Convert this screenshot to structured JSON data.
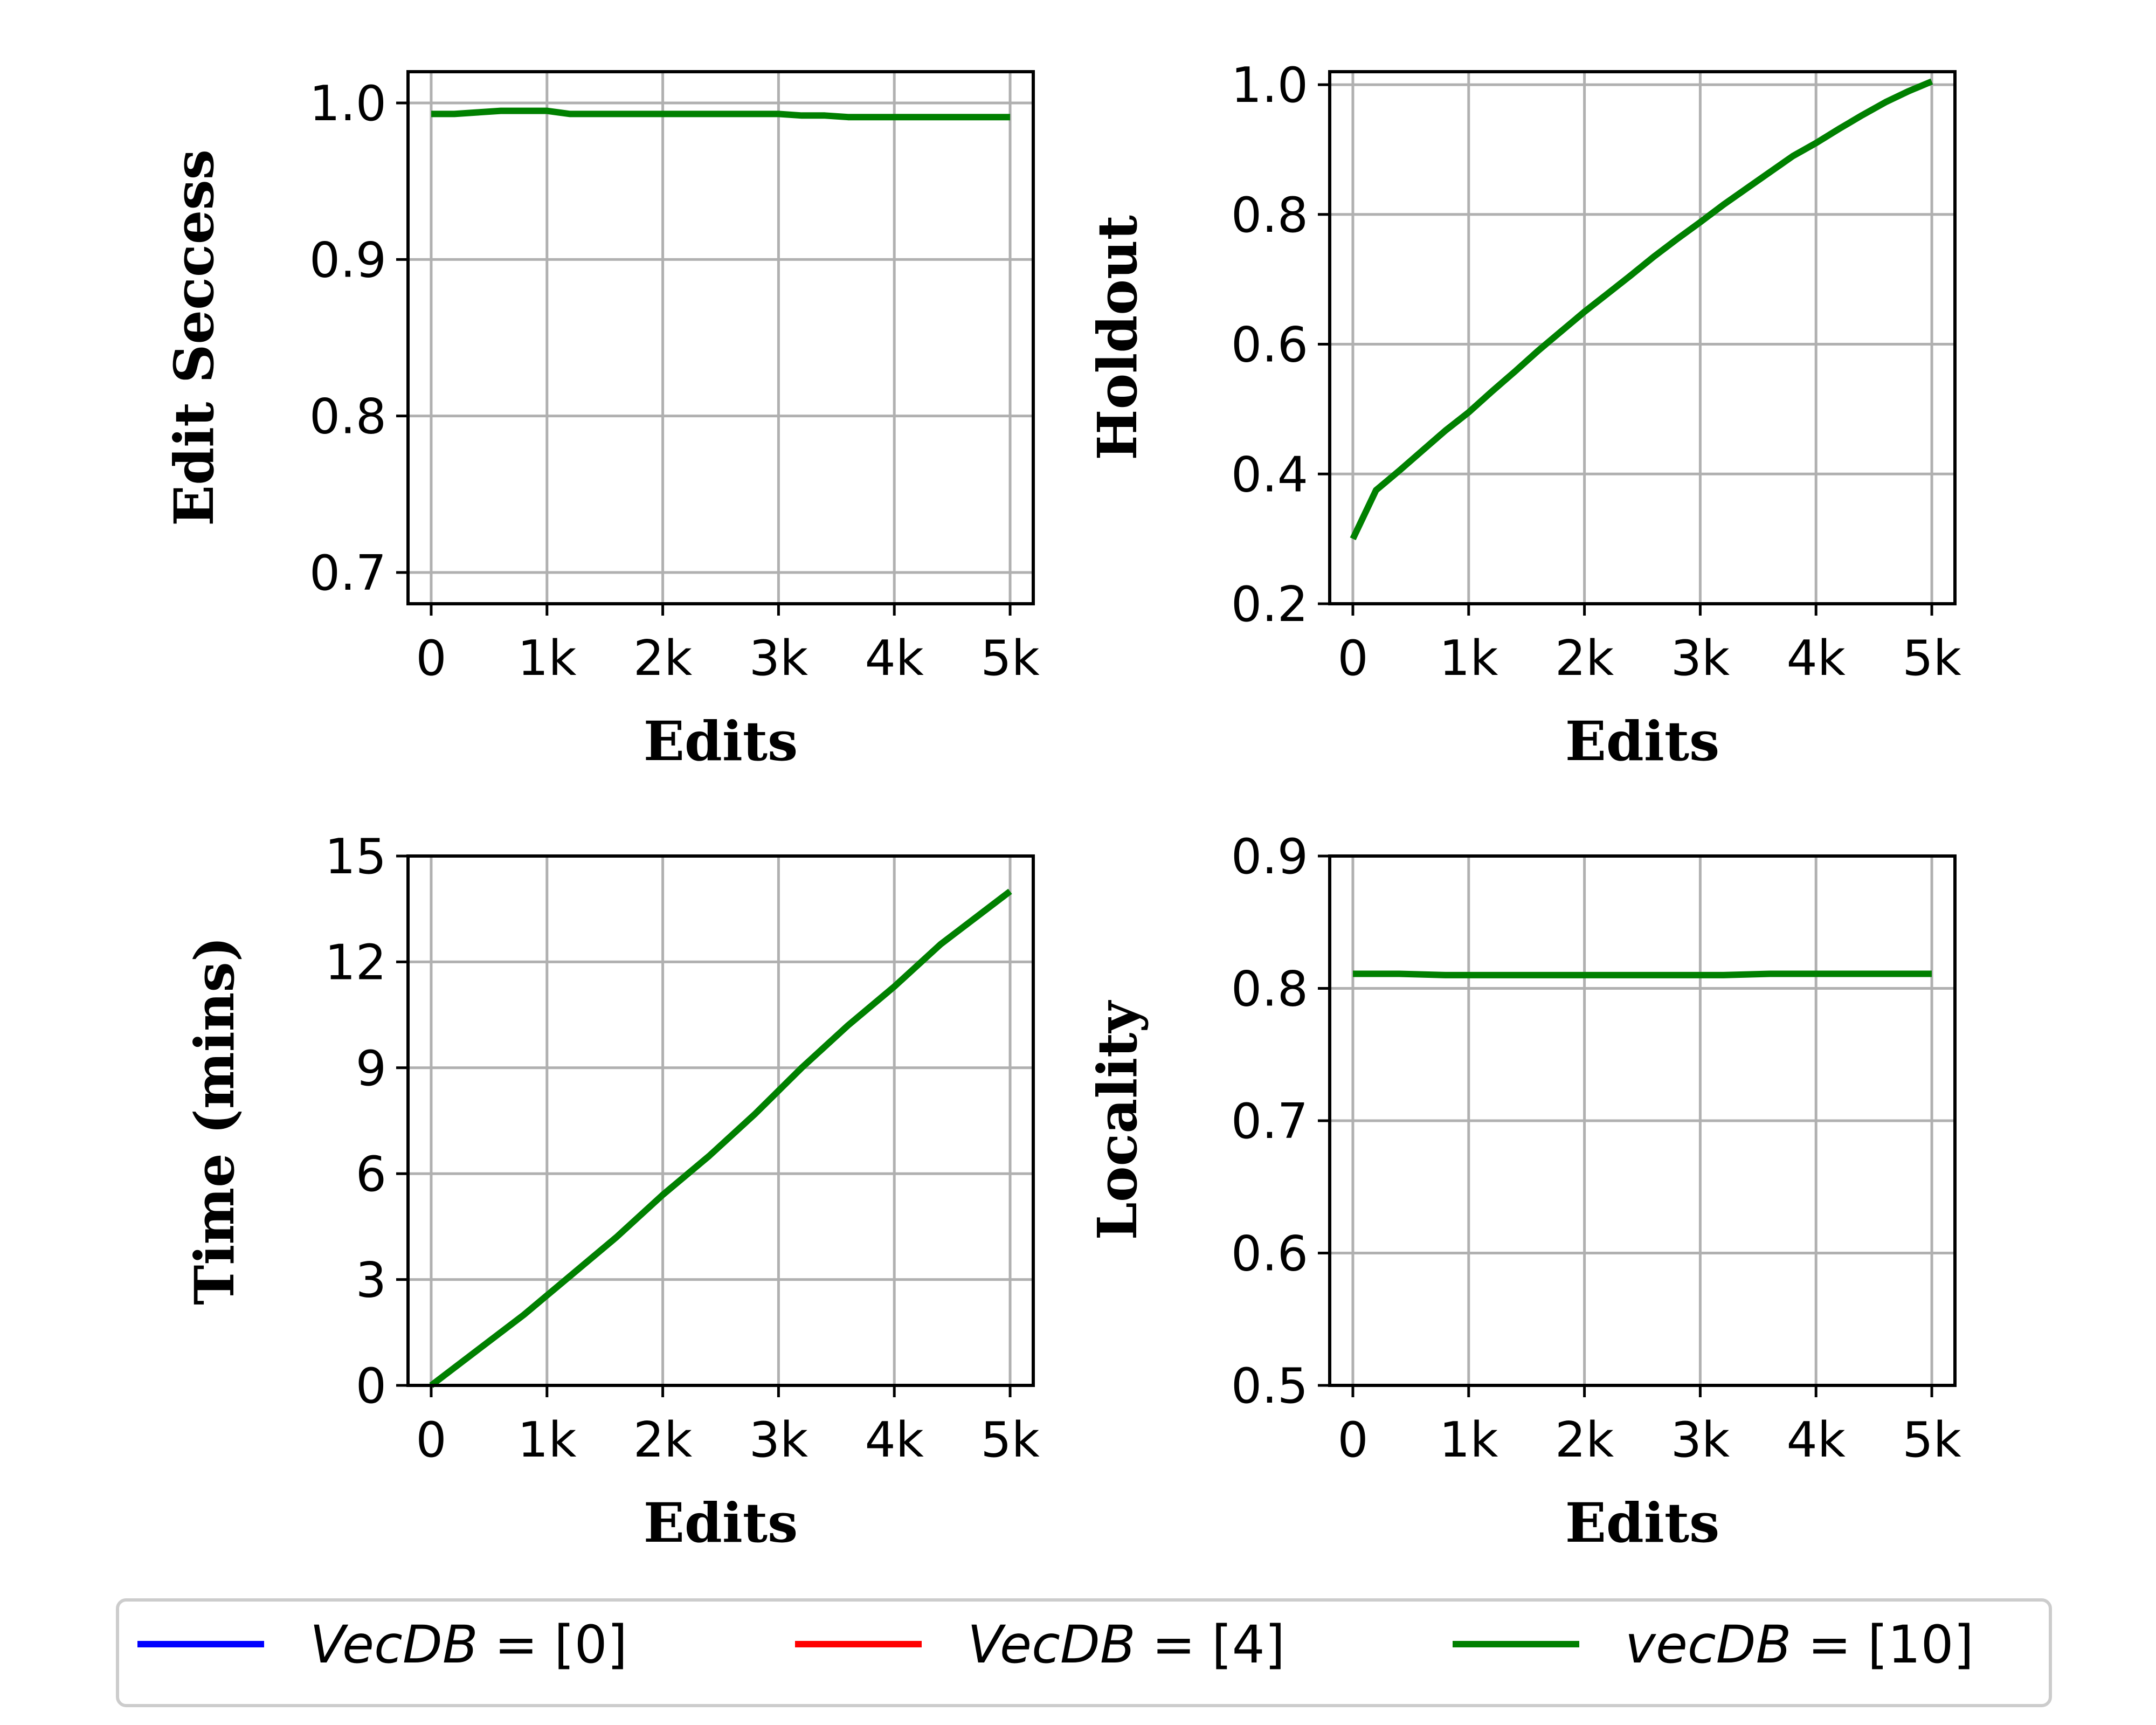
{
  "chart_data": [
    {
      "type": "line",
      "ylabel": "Edit Seccess",
      "xlabel": "Edits",
      "xticks": [
        "0",
        "1k",
        "2k",
        "3k",
        "4k",
        "5k"
      ],
      "yticks": [
        "0.7",
        "0.8",
        "0.9",
        "1.0"
      ],
      "xlim": [
        -200,
        5200
      ],
      "ylim": [
        0.68,
        1.02
      ],
      "grid": true,
      "series": [
        {
          "name": "vecDB = [10]",
          "color": "#008000",
          "x": [
            0,
            200,
            400,
            600,
            800,
            1000,
            1200,
            1400,
            1600,
            1800,
            2000,
            2200,
            2400,
            2600,
            2800,
            3000,
            3200,
            3400,
            3600,
            3800,
            4000,
            4200,
            4400,
            4600,
            4800,
            5000
          ],
          "y": [
            0.993,
            0.993,
            0.994,
            0.995,
            0.995,
            0.995,
            0.993,
            0.993,
            0.993,
            0.993,
            0.993,
            0.993,
            0.993,
            0.993,
            0.993,
            0.993,
            0.992,
            0.992,
            0.991,
            0.991,
            0.991,
            0.991,
            0.991,
            0.991,
            0.991,
            0.991
          ]
        }
      ]
    },
    {
      "type": "line",
      "ylabel": "Holdout",
      "xlabel": "Edits",
      "xticks": [
        "0",
        "1k",
        "2k",
        "3k",
        "4k",
        "5k"
      ],
      "yticks": [
        "0.2",
        "0.4",
        "0.6",
        "0.8",
        "1.0"
      ],
      "xlim": [
        -200,
        5200
      ],
      "ylim": [
        0.2,
        1.02
      ],
      "grid": true,
      "series": [
        {
          "name": "vecDB = [10]",
          "color": "#008000",
          "x": [
            0,
            200,
            400,
            600,
            800,
            1000,
            1200,
            1400,
            1600,
            1800,
            2000,
            2200,
            2400,
            2600,
            2800,
            3000,
            3200,
            3400,
            3600,
            3800,
            4000,
            4200,
            4400,
            4600,
            4800,
            5000
          ],
          "y": [
            0.3,
            0.375,
            0.405,
            0.436,
            0.467,
            0.495,
            0.527,
            0.558,
            0.59,
            0.62,
            0.65,
            0.678,
            0.706,
            0.735,
            0.762,
            0.788,
            0.815,
            0.84,
            0.865,
            0.89,
            0.91,
            0.932,
            0.953,
            0.973,
            0.99,
            1.005
          ]
        }
      ]
    },
    {
      "type": "line",
      "ylabel": "Time (mins)",
      "xlabel": "Edits",
      "xticks": [
        "0",
        "1k",
        "2k",
        "3k",
        "4k",
        "5k"
      ],
      "yticks": [
        "0",
        "3",
        "6",
        "9",
        "12",
        "15"
      ],
      "xlim": [
        -200,
        5200
      ],
      "ylim": [
        0,
        15
      ],
      "grid": true,
      "series": [
        {
          "name": "vecDB = [10]",
          "color": "#008000",
          "x": [
            0,
            400,
            800,
            1200,
            1600,
            2000,
            2400,
            2800,
            3200,
            3600,
            4000,
            4400,
            4800,
            5000
          ],
          "y": [
            0,
            1.0,
            2.0,
            3.1,
            4.2,
            5.4,
            6.5,
            7.7,
            9.0,
            10.2,
            11.3,
            12.5,
            13.5,
            14.0
          ]
        }
      ]
    },
    {
      "type": "line",
      "ylabel": "Locality",
      "xlabel": "Edits",
      "xticks": [
        "0",
        "1k",
        "2k",
        "3k",
        "4k",
        "5k"
      ],
      "yticks": [
        "0.5",
        "0.6",
        "0.7",
        "0.8",
        "0.9"
      ],
      "xlim": [
        -200,
        5200
      ],
      "ylim": [
        0.5,
        0.9
      ],
      "grid": true,
      "series": [
        {
          "name": "vecDB = [10]",
          "color": "#008000",
          "x": [
            0,
            400,
            800,
            1200,
            1600,
            2000,
            2400,
            2800,
            3200,
            3600,
            4000,
            4400,
            4800,
            5000
          ],
          "y": [
            0.811,
            0.811,
            0.81,
            0.81,
            0.81,
            0.81,
            0.81,
            0.81,
            0.81,
            0.811,
            0.811,
            0.811,
            0.811,
            0.811
          ]
        }
      ]
    }
  ],
  "legend": {
    "placement": "bottom",
    "entries": [
      {
        "label_name": "VecDB",
        "label_rest": " = [0]",
        "color": "#0000ff"
      },
      {
        "label_name": "VecDB",
        "label_rest": " = [4]",
        "color": "#ff0000"
      },
      {
        "label_name": "vecDB",
        "label_rest": " = [10]",
        "color": "#008000"
      }
    ]
  }
}
